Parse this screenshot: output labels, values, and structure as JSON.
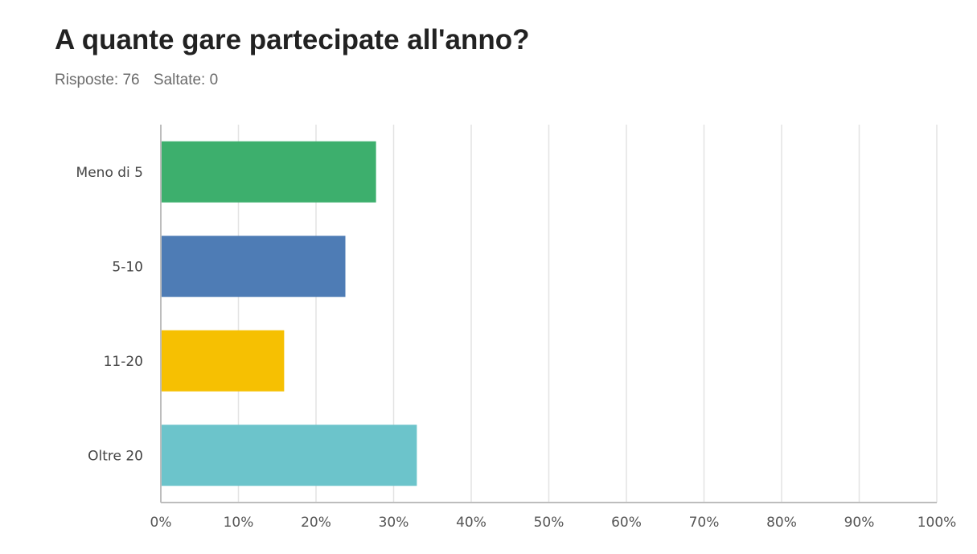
{
  "header": {
    "title": "A quante gare partecipate all'anno?",
    "responses_label": "Risposte: 76",
    "skipped_label": "Saltate: 0"
  },
  "chart_data": {
    "type": "bar",
    "orientation": "horizontal",
    "title": "",
    "xlabel": "",
    "ylabel": "",
    "categories": [
      "Meno di 5",
      "5-10",
      "11-20",
      "Oltre 20"
    ],
    "values": [
      27.63,
      23.68,
      15.79,
      32.89
    ],
    "colors": [
      "#3daf6d",
      "#4e7cb5",
      "#f6c002",
      "#6cc4cb"
    ],
    "xlim": [
      0,
      100
    ],
    "x_ticks": [
      "0%",
      "10%",
      "20%",
      "30%",
      "40%",
      "50%",
      "60%",
      "70%",
      "80%",
      "90%",
      "100%"
    ],
    "grid": true,
    "legend": "none",
    "value_unit": "%"
  }
}
